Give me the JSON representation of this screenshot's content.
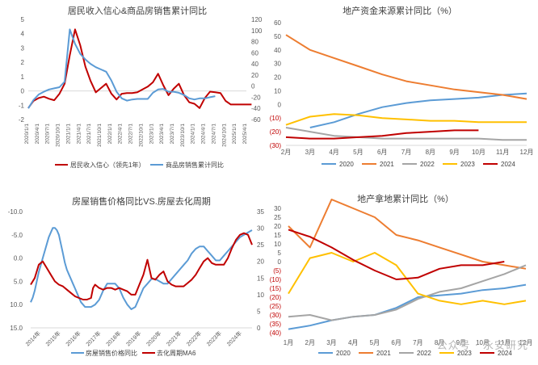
{
  "watermark": "公众号 · 永安研究",
  "chart_data": [
    {
      "type": "line",
      "title": "居民收入信心&商品房销售累计同比",
      "dual_axis": true,
      "left_ylim": [
        -2,
        5
      ],
      "left_ticks": [
        "-2",
        "-1",
        "0",
        "1",
        "2",
        "3",
        "4",
        "5"
      ],
      "right_ylim": [
        -60,
        120
      ],
      "right_ticks": [
        "-60",
        "-40",
        "-20",
        "0",
        "20",
        "40",
        "60",
        "80",
        "100",
        "120"
      ],
      "x_tick_labels": [
        "2020/1/1",
        "2020/4/1",
        "2020/7/1",
        "2020/10/1",
        "2021/1/1",
        "2021/4/1",
        "2021/7/1",
        "2021/10/1",
        "2022/1/1",
        "2022/4/1",
        "2022/7/1",
        "2022/10/1",
        "2023/1/1",
        "2023/4/1",
        "2023/7/1",
        "2023/10/1",
        "2024/1/1",
        "2024/4/1",
        "2024/7/1",
        "2024/10/1",
        "2025/1/1",
        "2025/4/1"
      ],
      "legend_position": "bottom",
      "series": [
        {
          "name": "居民收入信心（领先1年）",
          "color": "#c00000",
          "axis": "left",
          "x": [
            0,
            0.5,
            1,
            1.5,
            2,
            2.5,
            3,
            3.5,
            4,
            4.5,
            5,
            5.5,
            6,
            6.5,
            7,
            7.5,
            8,
            8.5,
            9,
            9.5,
            10,
            10.5,
            11,
            11.5,
            12,
            12.5,
            13,
            13.5,
            14,
            14.5,
            15,
            15.5,
            16,
            16.5,
            17,
            17.5,
            18,
            18.5,
            19,
            19.5,
            20,
            20.5,
            21,
            21.5
          ],
          "values": [
            -1.2,
            -0.7,
            -0.5,
            -0.4,
            -0.55,
            -0.65,
            -0.2,
            0.5,
            2.5,
            4.3,
            3.2,
            1.7,
            0.7,
            -0.1,
            0.2,
            0.5,
            -0.2,
            -0.6,
            -0.2,
            -0.15,
            -0.15,
            -0.1,
            0.1,
            0.3,
            0.6,
            1.2,
            0.4,
            -0.3,
            0.15,
            0.5,
            -0.3,
            -0.8,
            -0.9,
            -1.2,
            -0.5,
            -0.05,
            -0.1,
            -0.15,
            -0.7,
            -0.95,
            -0.95,
            -0.95,
            -0.95,
            -0.95
          ]
        },
        {
          "name": "商品房销售累计同比",
          "color": "#5b9bd5",
          "axis": "right",
          "x": [
            0,
            0.5,
            1,
            1.5,
            2,
            2.5,
            3,
            3.5,
            4,
            4.5,
            5,
            5.5,
            6,
            6.5,
            7,
            7.5,
            8,
            8.5,
            9,
            9.5,
            10,
            10.5,
            11,
            11.5,
            12,
            12.5,
            13,
            13.5,
            14,
            14.5,
            15,
            15.5,
            16,
            16.5,
            17,
            17.5,
            18
          ],
          "values": [
            -40,
            -25,
            -15,
            -10,
            -6,
            -4,
            -2,
            8,
            102,
            76,
            58,
            48,
            40,
            34,
            30,
            26,
            10,
            -10,
            -22,
            -26,
            -24,
            -23,
            -23,
            -23,
            -12,
            -6,
            -5,
            -10,
            -10,
            -12,
            -16,
            -22,
            -24,
            -22,
            -22,
            -20,
            -18
          ]
        }
      ]
    },
    {
      "type": "line",
      "title": "地产资金来源累计同比（%）",
      "ylim": [
        -30,
        60
      ],
      "y_ticks": [
        "60",
        "50",
        "40",
        "30",
        "20",
        "10",
        "0",
        "(10)",
        "(20)",
        "(30)"
      ],
      "categories": [
        "2月",
        "3月",
        "4月",
        "5月",
        "6月",
        "7月",
        "8月",
        "9月",
        "10月",
        "11月",
        "12月"
      ],
      "legend_position": "bottom",
      "series": [
        {
          "name": "2020",
          "color": "#5b9bd5",
          "values": [
            null,
            -17,
            -13,
            -7,
            -2,
            1,
            3,
            4,
            5,
            7,
            8
          ]
        },
        {
          "name": "2021",
          "color": "#ed7d31",
          "values": [
            51,
            40,
            34,
            28,
            22,
            17,
            14,
            11,
            9,
            7,
            4
          ]
        },
        {
          "name": "2022",
          "color": "#a5a5a5",
          "values": [
            -17,
            -20,
            -23,
            -24,
            -25,
            -25,
            -25,
            -25,
            -25,
            -26,
            -26
          ]
        },
        {
          "name": "2023",
          "color": "#ffc000",
          "values": [
            -15,
            -9,
            -7,
            -8,
            -10,
            -11,
            -12,
            -12,
            -13,
            -13,
            -13
          ]
        },
        {
          "name": "2024",
          "color": "#c00000",
          "values": [
            -24,
            -25,
            -25,
            -24,
            -23,
            -21,
            -20,
            -19,
            -19,
            null,
            null
          ]
        }
      ]
    },
    {
      "type": "line",
      "title": "房屋销售价格同比VS.房屋去化周期",
      "dual_axis": true,
      "left_ylim": [
        -10,
        15
      ],
      "left_inverted": true,
      "left_ticks": [
        "-10.0",
        "-5.0",
        "0.0",
        "5.0",
        "10.0",
        "15.0"
      ],
      "right_ylim": [
        0,
        35
      ],
      "right_ticks": [
        "0",
        "5",
        "10",
        "15",
        "20",
        "25",
        "30",
        "35"
      ],
      "x_tick_labels": [
        "2014年",
        "2015年",
        "2016年",
        "2017年",
        "2018年",
        "2019年",
        "2020年",
        "2021年",
        "2022年",
        "2023年",
        "2024年"
      ],
      "legend_position": "bottom",
      "series": [
        {
          "name": "房屋销售价格同比",
          "color": "#5b9bd5",
          "axis": "left",
          "x": [
            0,
            0.1,
            0.2,
            0.3,
            0.4,
            0.5,
            0.6,
            0.7,
            0.8,
            0.9,
            1.0,
            1.1,
            1.2,
            1.3,
            1.4,
            1.5,
            1.6,
            1.7,
            1.8,
            1.9,
            2.0,
            2.1,
            2.2,
            2.3,
            2.4,
            2.5,
            2.6,
            2.7,
            2.8,
            2.9,
            3.0,
            3.2,
            3.4,
            3.6,
            3.8,
            4.0,
            4.2,
            4.4,
            4.6,
            4.8,
            5.0,
            5.2,
            5.4,
            5.6,
            5.8,
            6.0,
            6.2,
            6.4,
            6.6,
            6.8,
            7.0,
            7.2,
            7.4,
            7.6,
            7.8,
            8.0,
            8.2,
            8.4,
            8.6,
            8.8,
            9.0,
            9.2,
            9.4,
            9.6,
            9.8,
            10.0,
            10.2,
            10.4,
            10.6,
            10.8,
            11.0
          ],
          "values": [
            9.5,
            8.5,
            7.0,
            5.0,
            3.0,
            1.5,
            0.0,
            -1.5,
            -3.0,
            -4.5,
            -5.5,
            -6.5,
            -6.5,
            -6.0,
            -5.0,
            -3.0,
            -1.0,
            1.0,
            2.5,
            3.5,
            4.5,
            5.5,
            6.5,
            7.5,
            8.5,
            9.5,
            10.0,
            10.5,
            10.5,
            10.5,
            10.5,
            10.0,
            9.0,
            7.0,
            5.5,
            5.5,
            5.5,
            6.5,
            8.5,
            10.0,
            11.0,
            10.5,
            8.5,
            6.5,
            5.5,
            4.5,
            4.5,
            5.0,
            5.5,
            5.5,
            4.5,
            3.5,
            2.5,
            1.5,
            0.5,
            -1.0,
            -2.0,
            -2.5,
            -2.5,
            -1.5,
            -0.5,
            0.5,
            0.5,
            -0.5,
            -1.5,
            -2.5,
            -3.5,
            -4.5,
            -5.0,
            -5.5,
            -6.0
          ]
        },
        {
          "name": "去化周期MA6",
          "color": "#c00000",
          "axis": "right",
          "x": [
            0,
            0.2,
            0.4,
            0.6,
            0.8,
            1.0,
            1.2,
            1.4,
            1.6,
            1.8,
            2.0,
            2.2,
            2.4,
            2.6,
            2.8,
            3.0,
            3.1,
            3.2,
            3.4,
            3.6,
            3.8,
            4.0,
            4.2,
            4.4,
            4.6,
            4.8,
            5.0,
            5.2,
            5.4,
            5.6,
            5.8,
            6.0,
            6.2,
            6.4,
            6.6,
            6.8,
            7.0,
            7.2,
            7.4,
            7.6,
            7.8,
            8.0,
            8.2,
            8.4,
            8.6,
            8.8,
            9.0,
            9.2,
            9.4,
            9.6,
            9.8,
            10.0,
            10.2,
            10.4,
            10.6,
            10.8,
            11.0
          ],
          "values": [
            13,
            15,
            19,
            20,
            18,
            16,
            14,
            13,
            12.5,
            11.5,
            10.5,
            9.5,
            9.0,
            8.5,
            8.5,
            9.0,
            12.0,
            13.0,
            12.0,
            11.5,
            12.0,
            12.0,
            11.5,
            12.0,
            11.5,
            11.0,
            10.0,
            10.0,
            13.0,
            16.0,
            20.5,
            15.0,
            14.5,
            16.0,
            17.0,
            14.0,
            13.0,
            12.5,
            12.5,
            12.5,
            13.5,
            14.5,
            16.0,
            18.0,
            20.0,
            21.0,
            19.5,
            19.0,
            19.0,
            19.0,
            21.0,
            24.0,
            26.5,
            28.0,
            28.5,
            28.0,
            25.0
          ]
        }
      ]
    },
    {
      "type": "line",
      "title": "地产拿地累计同比（%）",
      "ylim": [
        -40,
        30
      ],
      "y_ticks": [
        "30",
        "25",
        "20",
        "15",
        "10",
        "5",
        "0",
        "(5)",
        "(10)",
        "(15)",
        "(20)",
        "(25)",
        "(30)",
        "(35)",
        "(40)"
      ],
      "categories": [
        "1月",
        "2月",
        "3月",
        "4月",
        "5月",
        "6月",
        "7月",
        "8月",
        "9月",
        "10月",
        "11月",
        "12月"
      ],
      "legend_position": "bottom",
      "series": [
        {
          "name": "2020",
          "color": "#5b9bd5",
          "values": [
            -38,
            -36,
            -33,
            -31,
            -30,
            -26,
            -20,
            -19,
            -18,
            -16,
            -15,
            -13
          ]
        },
        {
          "name": "2021",
          "color": "#ed7d31",
          "values": [
            20,
            8,
            35,
            30,
            25,
            15,
            12,
            8,
            4,
            0,
            -2,
            -4
          ]
        },
        {
          "name": "2022",
          "color": "#a5a5a5",
          "values": [
            -31,
            -30,
            -33,
            -31,
            -30,
            -27,
            -21,
            -17,
            -15,
            -11,
            -7,
            -2
          ]
        },
        {
          "name": "2023",
          "color": "#ffc000",
          "values": [
            -18,
            2,
            5,
            0,
            5,
            -2,
            -18,
            -22,
            -24,
            -22,
            -24,
            -22
          ]
        },
        {
          "name": "2024",
          "color": "#c00000",
          "values": [
            18,
            14,
            8,
            1,
            -5,
            -10,
            -9,
            -4,
            -2,
            -2,
            0,
            null
          ]
        }
      ]
    }
  ]
}
